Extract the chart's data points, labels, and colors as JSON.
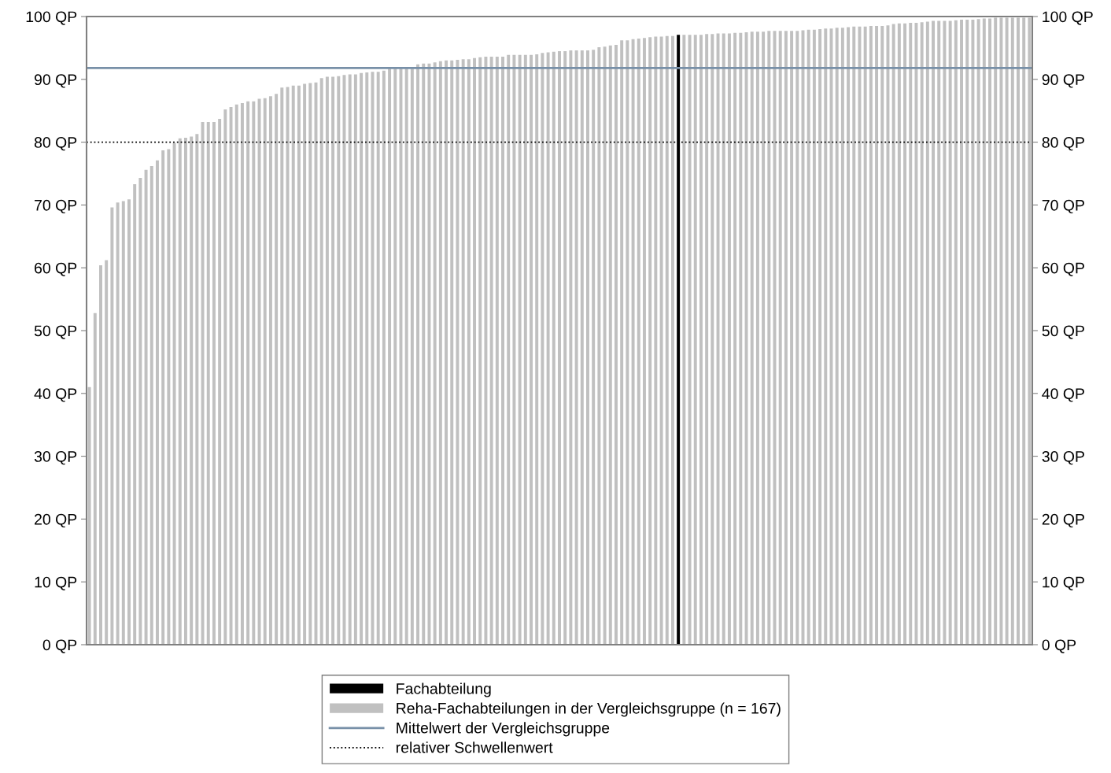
{
  "chart_data": {
    "type": "bar",
    "categories": [
      null,
      null,
      null,
      null,
      null,
      null,
      null,
      null,
      null,
      null,
      null,
      null,
      null,
      null,
      null,
      null,
      null,
      null,
      null,
      null,
      null,
      null,
      null,
      null,
      null,
      null,
      null,
      null,
      null,
      null,
      null,
      null,
      null,
      null,
      null,
      null,
      null,
      null,
      null,
      null,
      null,
      null,
      null,
      null,
      null,
      null,
      null,
      null,
      null,
      null,
      null,
      null,
      null,
      null,
      null,
      null,
      null,
      null,
      null,
      null,
      null,
      null,
      null,
      null,
      null,
      null,
      null,
      null,
      null,
      null,
      null,
      null,
      null,
      null,
      null,
      null,
      null,
      null,
      null,
      null,
      null,
      null,
      null,
      null,
      null,
      null,
      null,
      null,
      null,
      null,
      null,
      null,
      null,
      null,
      null,
      null,
      null,
      null,
      null,
      null,
      null,
      null,
      null,
      null,
      null,
      null,
      null,
      null,
      null,
      null,
      null,
      null,
      null,
      null,
      null,
      null,
      null,
      null,
      null,
      null,
      null,
      null,
      null,
      null,
      null,
      null,
      null,
      null,
      null,
      null,
      null,
      null,
      null,
      null,
      null,
      null,
      null,
      null,
      null,
      null,
      null,
      null,
      null,
      null,
      null,
      null,
      null,
      null,
      null,
      null,
      null,
      null,
      null,
      null,
      null,
      null,
      null,
      null,
      null,
      null,
      null,
      null,
      null,
      null,
      null,
      null,
      null
    ],
    "series": [
      {
        "name": "Fachabteilung",
        "color": "#000000",
        "values": [
          null,
          null,
          null,
          null,
          null,
          null,
          null,
          null,
          null,
          null,
          null,
          null,
          null,
          null,
          null,
          null,
          null,
          null,
          null,
          null,
          null,
          null,
          null,
          null,
          null,
          null,
          null,
          null,
          null,
          null,
          null,
          null,
          null,
          null,
          null,
          null,
          null,
          null,
          null,
          null,
          null,
          null,
          null,
          null,
          null,
          null,
          null,
          null,
          null,
          null,
          null,
          null,
          null,
          null,
          null,
          null,
          null,
          null,
          null,
          null,
          null,
          null,
          null,
          null,
          null,
          null,
          null,
          null,
          null,
          null,
          null,
          null,
          null,
          null,
          null,
          null,
          null,
          null,
          null,
          null,
          null,
          null,
          null,
          null,
          null,
          null,
          null,
          null,
          null,
          null,
          null,
          null,
          null,
          null,
          null,
          null,
          null,
          null,
          null,
          null,
          null,
          null,
          null,
          null,
          97.1,
          null,
          null,
          null,
          null,
          null,
          null,
          null,
          null,
          null,
          null,
          null,
          null,
          null,
          null,
          null,
          null,
          null,
          null,
          null,
          null,
          null,
          null,
          null,
          null,
          null,
          null,
          null,
          null,
          null,
          null,
          null,
          null,
          null,
          null,
          null,
          null,
          null,
          null,
          null,
          null,
          null,
          null,
          null,
          null,
          null,
          null,
          null,
          null,
          null,
          null,
          null,
          null,
          null,
          null,
          null,
          null,
          null,
          null,
          null,
          null,
          null,
          null
        ]
      },
      {
        "name": "Reha-Fachabteilungen in der Vergleichsgruppe (n = 167)",
        "color": "#c0c0c0",
        "values": [
          41.0,
          52.8,
          60.4,
          61.2,
          69.6,
          70.4,
          70.6,
          70.9,
          73.3,
          74.3,
          75.6,
          76.2,
          77.1,
          78.7,
          78.9,
          79.9,
          80.6,
          80.7,
          80.9,
          81.3,
          83.2,
          83.2,
          83.2,
          83.7,
          85.2,
          85.6,
          86.0,
          86.2,
          86.5,
          86.5,
          86.9,
          87.0,
          87.3,
          87.7,
          88.7,
          88.8,
          89.0,
          89.0,
          89.3,
          89.4,
          89.5,
          90.2,
          90.4,
          90.4,
          90.5,
          90.7,
          90.8,
          90.8,
          91.0,
          91.1,
          91.2,
          91.2,
          91.4,
          91.7,
          91.7,
          91.7,
          91.7,
          91.7,
          92.4,
          92.5,
          92.5,
          92.7,
          92.9,
          93.0,
          93.0,
          93.1,
          93.2,
          93.2,
          93.4,
          93.5,
          93.6,
          93.6,
          93.6,
          93.6,
          93.9,
          93.9,
          93.9,
          93.9,
          93.9,
          94.0,
          94.2,
          94.3,
          94.4,
          94.5,
          94.5,
          94.6,
          94.6,
          94.6,
          94.6,
          94.7,
          95.1,
          95.2,
          95.4,
          95.5,
          96.2,
          96.2,
          96.4,
          96.5,
          96.6,
          96.7,
          96.8,
          96.8,
          96.9,
          96.9,
          null,
          97.1,
          97.1,
          97.1,
          97.1,
          97.2,
          97.2,
          97.3,
          97.3,
          97.3,
          97.4,
          97.4,
          97.5,
          97.6,
          97.6,
          97.6,
          97.7,
          97.7,
          97.7,
          97.7,
          97.7,
          97.7,
          97.8,
          97.9,
          97.9,
          98.0,
          98.1,
          98.1,
          98.2,
          98.2,
          98.3,
          98.4,
          98.4,
          98.4,
          98.5,
          98.5,
          98.5,
          98.6,
          98.8,
          98.9,
          98.9,
          99.0,
          99.0,
          99.1,
          99.2,
          99.3,
          99.3,
          99.3,
          99.3,
          99.4,
          99.5,
          99.5,
          99.5,
          99.6,
          99.7,
          99.7,
          99.8,
          99.8,
          99.8,
          99.8,
          99.8,
          99.8,
          99.8
        ]
      }
    ],
    "ylim": [
      0,
      100
    ],
    "yticks": [
      {
        "value": 0,
        "label": "0 QP"
      },
      {
        "value": 10,
        "label": "10 QP"
      },
      {
        "value": 20,
        "label": "20 QP"
      },
      {
        "value": 30,
        "label": "30 QP"
      },
      {
        "value": 40,
        "label": "40 QP"
      },
      {
        "value": 50,
        "label": "50 QP"
      },
      {
        "value": 60,
        "label": "60 QP"
      },
      {
        "value": 70,
        "label": "70 QP"
      },
      {
        "value": 80,
        "label": "80 QP"
      },
      {
        "value": 90,
        "label": "90 QP"
      },
      {
        "value": 100,
        "label": "100 QP"
      }
    ],
    "y2lim": [
      0,
      100
    ],
    "y2ticks": [
      {
        "value": 0,
        "label": "0 QP"
      },
      {
        "value": 10,
        "label": "10 QP"
      },
      {
        "value": 20,
        "label": "20 QP"
      },
      {
        "value": 30,
        "label": "30 QP"
      },
      {
        "value": 40,
        "label": "40 QP"
      },
      {
        "value": 50,
        "label": "50 QP"
      },
      {
        "value": 60,
        "label": "60 QP"
      },
      {
        "value": 70,
        "label": "70 QP"
      },
      {
        "value": 80,
        "label": "80 QP"
      },
      {
        "value": 90,
        "label": "90 QP"
      },
      {
        "value": 100,
        "label": "100 QP"
      }
    ],
    "ref_lines": [
      {
        "axis": "y",
        "value": 91.8,
        "label": "Mittelwert der Vergleichsgruppe",
        "color": "#7890a8",
        "line_style": "solid"
      },
      {
        "axis": "y",
        "value": 80,
        "label": "relativer Schwellenwert",
        "color": "#000000",
        "line_style": "dotted"
      }
    ],
    "grid": false,
    "legend": "bottom"
  }
}
